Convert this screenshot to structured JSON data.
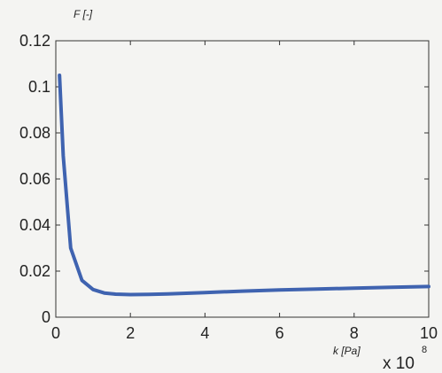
{
  "chart_data": {
    "type": "line",
    "ylabel": "F [-]",
    "xlabel": "k [Pa]",
    "x_multiplier": "x 10",
    "x_multiplier_exponent": "8",
    "xlim": [
      0,
      10
    ],
    "ylim": [
      0,
      0.12
    ],
    "x_ticks": [
      0,
      2,
      4,
      6,
      8,
      10
    ],
    "x_tick_labels": [
      "0",
      "2",
      "4",
      "6",
      "8",
      "10"
    ],
    "y_ticks": [
      0,
      0.02,
      0.04,
      0.06,
      0.08,
      0.1,
      0.12
    ],
    "y_tick_labels": [
      "0",
      "0.02",
      "0.04",
      "0.06",
      "0.08",
      "0.1",
      "0.12"
    ],
    "grid": false,
    "series": [
      {
        "color": "#3f63b0",
        "x": [
          0.1,
          0.2,
          0.4,
          0.7,
          1.0,
          1.3,
          1.6,
          2.0,
          2.5,
          3.0,
          4.0,
          5.0,
          6.0,
          7.0,
          8.0,
          9.0,
          10.0
        ],
        "y": [
          0.105,
          0.07,
          0.03,
          0.016,
          0.012,
          0.0105,
          0.01,
          0.0098,
          0.0099,
          0.0101,
          0.0107,
          0.0113,
          0.0118,
          0.0122,
          0.0126,
          0.013,
          0.0133
        ]
      }
    ]
  }
}
